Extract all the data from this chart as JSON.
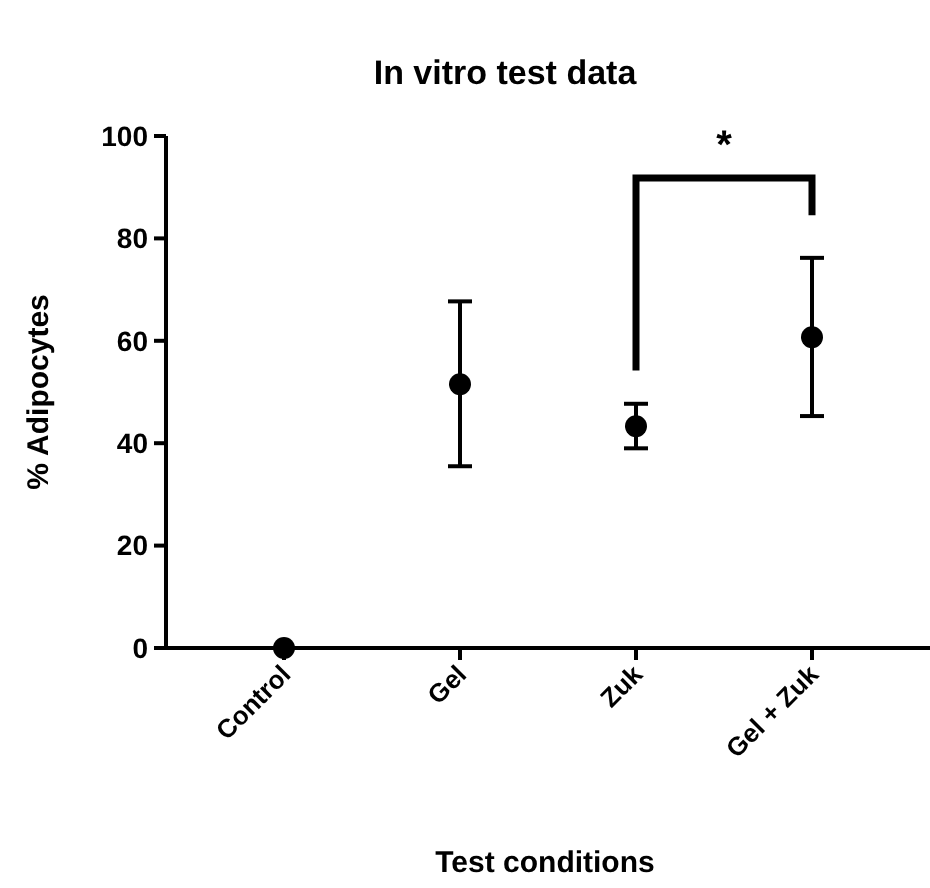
{
  "chart_data": {
    "type": "scatter",
    "title": "In vitro test data",
    "xlabel": "Test conditions",
    "ylabel": "% Adipocytes",
    "categories": [
      "Control",
      "Gel",
      "Zuk",
      "Gel + Zuk"
    ],
    "values": [
      0,
      51.5,
      43.3,
      60.7
    ],
    "errors": [
      null,
      [
        35.5,
        67.7
      ],
      [
        39,
        47.7
      ],
      [
        45.3,
        76.2
      ]
    ],
    "color": "#000000",
    "marker": "circle",
    "ylim": [
      0,
      100
    ],
    "yticks": [
      0,
      20,
      40,
      60,
      80,
      100
    ],
    "annotations": [
      "*"
    ]
  }
}
